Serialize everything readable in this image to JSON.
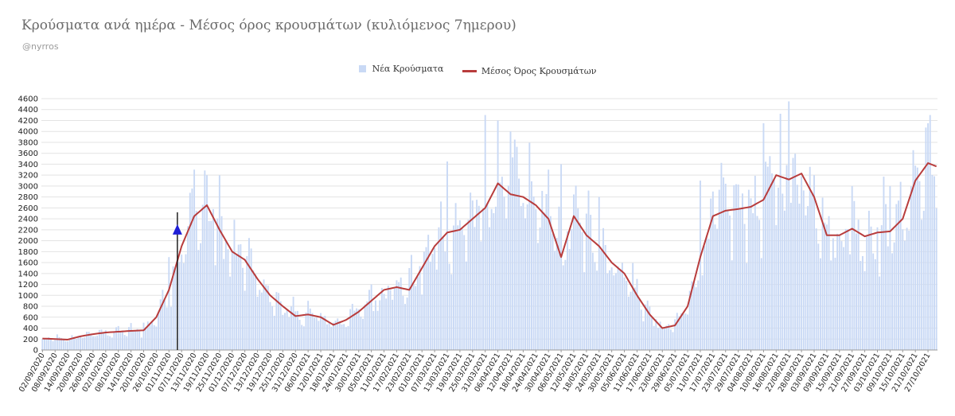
{
  "header": {
    "title": "Κρούσματα ανά ημέρα - Μέσος όρος κρουσμάτων (κυλιόμενος 7ημερου)",
    "subtitle": "@nyrros"
  },
  "colors": {
    "bar": "#c9d9f5",
    "line": "#b83c3c",
    "grid": "#e3e3e3",
    "marker": "#1f1fd6",
    "marker_line": "#111111"
  },
  "chart_data": {
    "type": "bar",
    "title": "Κρούσματα ανά ημέρα - Μέσος όρος κρουσμάτων (κυλιόμενος 7ημερου)",
    "legend": {
      "position": "top-center",
      "entries": [
        "Νέα Κρούσματα",
        "Μέσος Όρος Κρουσμάτων"
      ]
    },
    "grid": true,
    "ylim": [
      0,
      4600
    ],
    "y_ticks": [
      0,
      200,
      400,
      600,
      800,
      1000,
      1200,
      1400,
      1600,
      1800,
      2000,
      2200,
      2400,
      2600,
      2800,
      3000,
      3200,
      3400,
      3600,
      3800,
      4000,
      4200,
      4400,
      4600
    ],
    "x_range": [
      "02/09/2020",
      "31/10/2021"
    ],
    "x_tick_labels": [
      "02/09/2020",
      "08/09/2020",
      "14/09/2020",
      "20/09/2020",
      "26/09/2020",
      "02/10/2020",
      "08/10/2020",
      "14/10/2020",
      "20/10/2020",
      "26/10/2020",
      "01/11/2020",
      "07/11/2020",
      "13/11/2020",
      "19/11/2020",
      "25/11/2020",
      "01/12/2020",
      "07/12/2020",
      "13/12/2020",
      "19/12/2020",
      "25/12/2020",
      "31/12/2020",
      "06/01/2021",
      "12/01/2021",
      "18/01/2021",
      "24/01/2021",
      "30/01/2021",
      "05/02/2021",
      "11/02/2021",
      "17/02/2021",
      "23/02/2021",
      "01/03/2021",
      "07/03/2021",
      "13/03/2021",
      "19/03/2021",
      "25/03/2021",
      "31/03/2021",
      "06/04/2021",
      "12/04/2021",
      "18/04/2021",
      "24/04/2021",
      "30/04/2021",
      "06/05/2021",
      "12/05/2021",
      "18/05/2021",
      "24/05/2021",
      "30/05/2021",
      "05/06/2021",
      "11/06/2021",
      "17/06/2021",
      "23/06/2021",
      "29/06/2021",
      "05/07/2021",
      "11/07/2021",
      "17/07/2021",
      "23/07/2021",
      "29/07/2021",
      "04/08/2021",
      "10/08/2021",
      "16/08/2021",
      "22/08/2021",
      "28/08/2021",
      "03/09/2021",
      "09/09/2021",
      "15/09/2021",
      "21/09/2021",
      "27/09/2021",
      "03/10/2021",
      "09/10/2021",
      "15/10/2021",
      "21/10/2021",
      "27/10/2021"
    ],
    "series": [
      {
        "name": "Νέα Κρούσματα",
        "kind": "bar",
        "note_values": "approximate daily values read from chart, approximated by the rolling average with daily variation",
        "anchor_values": [
          [
            "02/09/2020",
            200
          ],
          [
            "01/10/2020",
            330
          ],
          [
            "20/10/2020",
            500
          ],
          [
            "01/11/2020",
            1700
          ],
          [
            "13/11/2020",
            3300
          ],
          [
            "19/11/2020",
            3200
          ],
          [
            "01/12/2020",
            1800
          ],
          [
            "20/12/2020",
            800
          ],
          [
            "06/01/2021",
            900
          ],
          [
            "18/01/2021",
            500
          ],
          [
            "05/02/2021",
            1200
          ],
          [
            "23/02/2021",
            1500
          ],
          [
            "13/03/2021",
            3450
          ],
          [
            "31/03/2021",
            4300
          ],
          [
            "06/04/2021",
            4200
          ],
          [
            "12/04/2021",
            4000
          ],
          [
            "30/04/2021",
            3300
          ],
          [
            "06/05/2021",
            3400
          ],
          [
            "24/05/2021",
            2800
          ],
          [
            "11/06/2021",
            1300
          ],
          [
            "23/06/2021",
            400
          ],
          [
            "11/07/2021",
            3100
          ],
          [
            "17/07/2021",
            2900
          ],
          [
            "10/08/2021",
            4150
          ],
          [
            "22/08/2021",
            4550
          ],
          [
            "03/09/2021",
            3200
          ],
          [
            "21/09/2021",
            3000
          ],
          [
            "09/10/2021",
            3000
          ],
          [
            "27/10/2021",
            4150
          ]
        ]
      },
      {
        "name": "Μέσος Όρος Κρουσμάτων",
        "kind": "line",
        "points": [
          [
            "02/09/2020",
            210
          ],
          [
            "14/09/2020",
            190
          ],
          [
            "20/09/2020",
            250
          ],
          [
            "26/09/2020",
            290
          ],
          [
            "02/10/2020",
            320
          ],
          [
            "14/10/2020",
            350
          ],
          [
            "20/10/2020",
            360
          ],
          [
            "26/10/2020",
            600
          ],
          [
            "01/11/2020",
            1100
          ],
          [
            "07/11/2020",
            1900
          ],
          [
            "13/11/2020",
            2450
          ],
          [
            "19/11/2020",
            2650
          ],
          [
            "25/11/2020",
            2200
          ],
          [
            "01/12/2020",
            1800
          ],
          [
            "07/12/2020",
            1650
          ],
          [
            "13/12/2020",
            1300
          ],
          [
            "19/12/2020",
            1000
          ],
          [
            "25/12/2020",
            800
          ],
          [
            "31/12/2020",
            620
          ],
          [
            "06/01/2021",
            650
          ],
          [
            "12/01/2021",
            600
          ],
          [
            "18/01/2021",
            460
          ],
          [
            "24/01/2021",
            550
          ],
          [
            "30/01/2021",
            700
          ],
          [
            "05/02/2021",
            900
          ],
          [
            "11/02/2021",
            1100
          ],
          [
            "17/02/2021",
            1150
          ],
          [
            "23/02/2021",
            1100
          ],
          [
            "01/03/2021",
            1500
          ],
          [
            "07/03/2021",
            1900
          ],
          [
            "13/03/2021",
            2150
          ],
          [
            "19/03/2021",
            2200
          ],
          [
            "25/03/2021",
            2400
          ],
          [
            "31/03/2021",
            2600
          ],
          [
            "06/04/2021",
            3050
          ],
          [
            "12/04/2021",
            2850
          ],
          [
            "18/04/2021",
            2800
          ],
          [
            "24/04/2021",
            2650
          ],
          [
            "30/04/2021",
            2400
          ],
          [
            "06/05/2021",
            1700
          ],
          [
            "12/05/2021",
            2450
          ],
          [
            "18/05/2021",
            2100
          ],
          [
            "24/05/2021",
            1900
          ],
          [
            "30/05/2021",
            1600
          ],
          [
            "05/06/2021",
            1400
          ],
          [
            "11/06/2021",
            1000
          ],
          [
            "17/06/2021",
            650
          ],
          [
            "23/06/2021",
            400
          ],
          [
            "29/06/2021",
            450
          ],
          [
            "05/07/2021",
            800
          ],
          [
            "11/07/2021",
            1700
          ],
          [
            "17/07/2021",
            2450
          ],
          [
            "23/07/2021",
            2550
          ],
          [
            "29/07/2021",
            2580
          ],
          [
            "04/08/2021",
            2620
          ],
          [
            "10/08/2021",
            2750
          ],
          [
            "16/08/2021",
            3200
          ],
          [
            "22/08/2021",
            3120
          ],
          [
            "28/08/2021",
            3230
          ],
          [
            "03/09/2021",
            2800
          ],
          [
            "09/09/2021",
            2100
          ],
          [
            "15/09/2021",
            2100
          ],
          [
            "21/09/2021",
            2220
          ],
          [
            "27/09/2021",
            2080
          ],
          [
            "03/10/2021",
            2150
          ],
          [
            "09/10/2021",
            2170
          ],
          [
            "15/10/2021",
            2400
          ],
          [
            "21/10/2021",
            3100
          ],
          [
            "27/10/2021",
            3420
          ],
          [
            "31/10/2021",
            3360
          ]
        ]
      }
    ],
    "annotation": {
      "type": "vertical-line-with-triangle",
      "date": "05/11/2020",
      "value": 2200
    }
  }
}
